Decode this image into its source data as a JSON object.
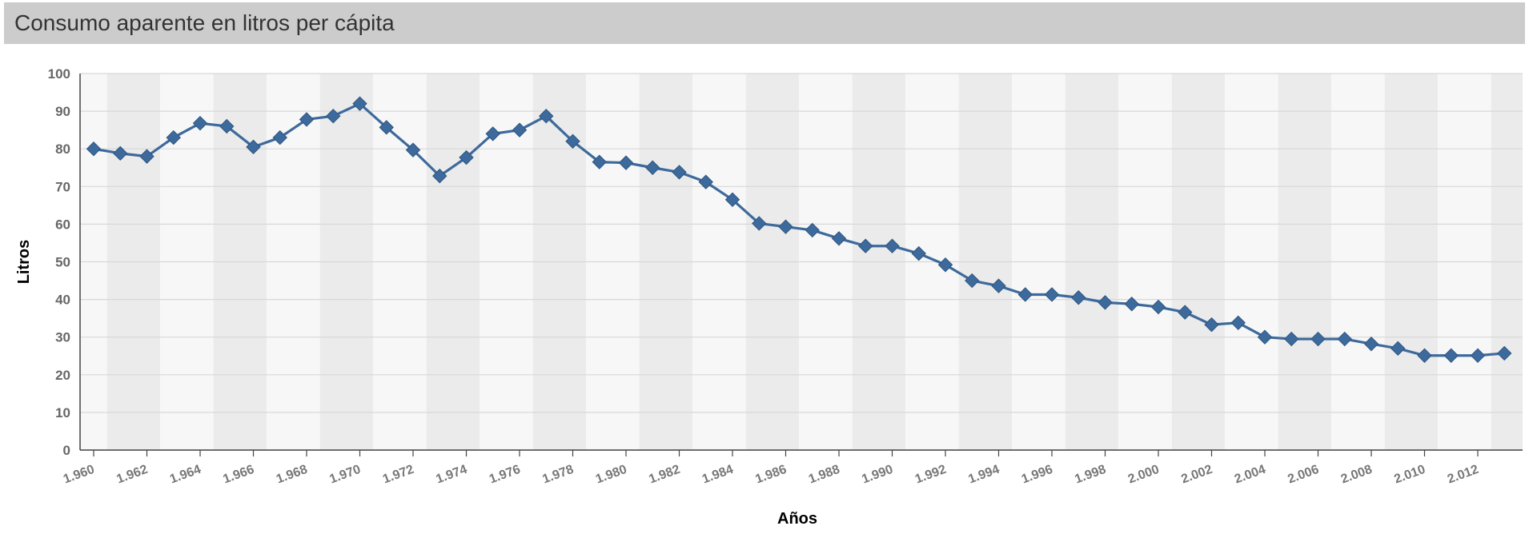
{
  "header": {
    "title": "Consumo aparente en litros per cápita"
  },
  "colors": {
    "line": "#3d6a9c",
    "marker": "#3d6a9c",
    "band_dark": "#ebebeb",
    "band_light": "#f7f7f7",
    "grid": "#d8d8d8",
    "title_bar": "#cccccc"
  },
  "chart_data": {
    "type": "line",
    "title": "",
    "xlabel": "Años",
    "ylabel": "Litros",
    "ylim": [
      0,
      100
    ],
    "yticks": [
      "0",
      "10",
      "20",
      "30",
      "40",
      "50",
      "60",
      "70",
      "80",
      "90",
      "100"
    ],
    "xticks": [
      "1.960",
      "1.962",
      "1.964",
      "1.966",
      "1.968",
      "1.970",
      "1.972",
      "1.974",
      "1.976",
      "1.978",
      "1.980",
      "1.982",
      "1.984",
      "1.986",
      "1.988",
      "1.990",
      "1.992",
      "1.994",
      "1.996",
      "1.998",
      "2.000",
      "2.002",
      "2.004",
      "2.006",
      "2.008",
      "2.010",
      "2.012"
    ],
    "grid": true,
    "legend": "none",
    "marker": "diamond",
    "x": [
      1960,
      1961,
      1962,
      1963,
      1964,
      1965,
      1966,
      1967,
      1968,
      1969,
      1970,
      1971,
      1972,
      1973,
      1974,
      1975,
      1976,
      1977,
      1978,
      1979,
      1980,
      1981,
      1982,
      1983,
      1984,
      1985,
      1986,
      1987,
      1988,
      1989,
      1990,
      1991,
      1992,
      1993,
      1994,
      1995,
      1996,
      1997,
      1998,
      1999,
      2000,
      2001,
      2002,
      2003,
      2004,
      2005,
      2006,
      2007,
      2008,
      2009,
      2010,
      2011,
      2012,
      2013
    ],
    "series": [
      {
        "values": [
          80,
          78.8,
          78,
          83,
          86.8,
          86,
          80.5,
          83,
          87.8,
          88.7,
          92,
          85.7,
          79.7,
          72.8,
          77.7,
          84,
          85,
          88.7,
          82,
          76.5,
          76.3,
          75,
          73.8,
          71.2,
          66.5,
          60.2,
          59.3,
          58.4,
          56.2,
          54.2,
          54.2,
          52.2,
          49.2,
          45,
          43.6,
          41.3,
          41.3,
          40.5,
          39.2,
          38.8,
          38,
          36.6,
          33.3,
          33.8,
          30,
          29.5,
          29.5,
          29.5,
          28.2,
          27,
          25.1,
          25.1,
          25.1,
          25.7
        ]
      }
    ]
  }
}
